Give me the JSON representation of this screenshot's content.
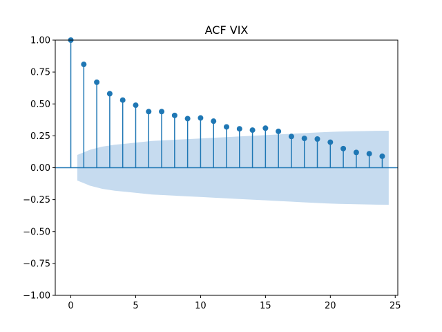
{
  "chart_data": {
    "type": "stem",
    "title": "ACF VIX",
    "xlabel": "",
    "ylabel": "",
    "xlim": [
      -1.2,
      25.2
    ],
    "ylim": [
      -1.0,
      1.0
    ],
    "x_ticks": [
      0,
      5,
      10,
      15,
      20,
      25
    ],
    "y_ticks": [
      -1.0,
      -0.75,
      -0.5,
      -0.25,
      0.0,
      0.25,
      0.5,
      0.75,
      1.0
    ],
    "y_tick_labels": [
      "−1.00",
      "−0.75",
      "−0.50",
      "−0.25",
      "0.00",
      "0.25",
      "0.50",
      "0.75",
      "1.00"
    ],
    "x_tick_labels": [
      "0",
      "5",
      "10",
      "15",
      "20",
      "25"
    ],
    "grid": false,
    "colors": {
      "stem": "#1f77b4",
      "confidence_band": "#c6dbef",
      "axis": "#000000"
    },
    "series": [
      {
        "lags": [
          0,
          1,
          2,
          3,
          4,
          5,
          6,
          7,
          8,
          9,
          10,
          11,
          12,
          13,
          14,
          15,
          16,
          17,
          18,
          19,
          20,
          21,
          22,
          23,
          24
        ],
        "values": [
          1.0,
          0.81,
          0.67,
          0.58,
          0.53,
          0.49,
          0.44,
          0.44,
          0.41,
          0.385,
          0.39,
          0.365,
          0.32,
          0.305,
          0.295,
          0.31,
          0.285,
          0.245,
          0.23,
          0.225,
          0.2,
          0.15,
          0.12,
          0.11,
          0.09
        ]
      }
    ],
    "confidence_band": {
      "x_start": 0.5,
      "x_end": 24.5,
      "upper": [
        0.1,
        0.14,
        0.165,
        0.18,
        0.19,
        0.2,
        0.21,
        0.215,
        0.22,
        0.225,
        0.23,
        0.235,
        0.24,
        0.245,
        0.25,
        0.255,
        0.26,
        0.265,
        0.27,
        0.275,
        0.28,
        0.283,
        0.285,
        0.287,
        0.289,
        0.29
      ]
    }
  }
}
